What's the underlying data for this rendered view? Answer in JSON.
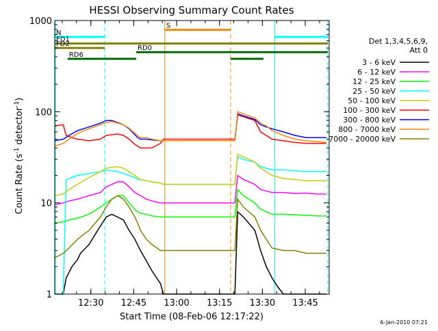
{
  "chart_data": {
    "type": "line",
    "title": "HESSI Observing Summary Count Rates",
    "xlabel": "Start Time (08-Feb-06 12:17:22)",
    "ylabel_text": "Count Rate (s",
    "ylabel_exp1": "-1",
    "ylabel_mid": " detector",
    "ylabel_exp2": "-1",
    "ylabel_end": ")",
    "y_scale": "log",
    "ylim": [
      1,
      1000
    ],
    "xlim_minutes": [
      0,
      96
    ],
    "x_ticks": [
      {
        "label": "12:30",
        "min": 12.63
      },
      {
        "label": "12:45",
        "min": 27.63
      },
      {
        "label": "13:00",
        "min": 42.63
      },
      {
        "label": "13:15",
        "min": 57.63
      },
      {
        "label": "13:30",
        "min": 72.63
      },
      {
        "label": "13:45",
        "min": 87.63
      }
    ],
    "y_ticks": [
      {
        "label": "1",
        "value": 1
      },
      {
        "label": "10",
        "value": 10
      },
      {
        "label": "100",
        "value": 100
      },
      {
        "label": "1000",
        "value": 1000
      }
    ],
    "legend": {
      "title_line1": "Det 1,3,4,5,6,9,",
      "title_line2": "Att 0",
      "position": "right"
    },
    "series": [
      {
        "name": "3 - 6 keV",
        "color": "#000000",
        "x": [
          0,
          3,
          4,
          6,
          8,
          9,
          12,
          15,
          18,
          20,
          24,
          26,
          28,
          30,
          34,
          37,
          38,
          63,
          64,
          66,
          70,
          72,
          74,
          76,
          78,
          80,
          84,
          88,
          92,
          95
        ],
        "y": [
          1,
          1,
          1.5,
          2,
          2.4,
          2.8,
          3.5,
          5,
          7,
          7.5,
          6.5,
          5,
          4,
          3,
          1.8,
          1.3,
          1,
          1,
          8,
          7,
          5,
          3,
          2,
          1.5,
          1.2,
          1,
          1,
          1,
          1,
          1
        ]
      },
      {
        "name": "6 - 12 keV",
        "color": "#ff00ff",
        "x": [
          0,
          3,
          5,
          8,
          12,
          16,
          18,
          22,
          24,
          26,
          28,
          29,
          30,
          32,
          34,
          37,
          38,
          63,
          64,
          66,
          68,
          70,
          72,
          74,
          76,
          80,
          84,
          88,
          92,
          95
        ],
        "y": [
          9.5,
          10,
          10.5,
          11,
          12,
          13,
          15,
          17,
          17,
          15,
          13,
          12.5,
          12,
          11,
          10.5,
          10,
          10,
          10,
          20,
          18,
          17,
          16,
          14,
          13.5,
          13,
          13,
          12.7,
          12.8,
          12.5,
          12.5
        ]
      },
      {
        "name": "12 - 25 keV",
        "color": "#00ff00",
        "x": [
          0,
          3,
          5,
          8,
          12,
          16,
          18,
          22,
          24,
          26,
          28,
          29,
          30,
          32,
          34,
          37,
          38,
          63,
          64,
          66,
          70,
          72,
          74,
          76,
          80,
          84,
          88,
          92,
          95
        ],
        "y": [
          6,
          6.2,
          6.5,
          6.8,
          7.5,
          9,
          10,
          12,
          12,
          10,
          8.5,
          8,
          7.7,
          7.5,
          7.2,
          7,
          7,
          7,
          14,
          12,
          10,
          8.5,
          8,
          7.5,
          7.5,
          7.4,
          7.3,
          7.2,
          7.2
        ]
      },
      {
        "name": "25 - 50 keV",
        "color": "#00ffff",
        "x": [
          0,
          3,
          4,
          6,
          8,
          12,
          16,
          18,
          22,
          24,
          26,
          28,
          29,
          30,
          34,
          37,
          38,
          63,
          64,
          66,
          70,
          72,
          74,
          76,
          80,
          84,
          88,
          92,
          95
        ],
        "y": [
          1,
          1,
          18,
          19,
          20,
          21,
          22,
          23,
          22,
          21,
          20,
          19,
          18,
          18,
          17,
          16.5,
          16,
          16,
          32,
          30,
          28,
          25,
          24,
          23,
          23,
          22.5,
          22,
          22,
          22
        ]
      },
      {
        "name": "50 - 100 keV",
        "color": "#cccc00",
        "x": [
          0,
          3,
          5,
          8,
          12,
          16,
          18,
          22,
          24,
          26,
          28,
          29,
          30,
          34,
          37,
          38,
          63,
          64,
          66,
          70,
          72,
          74,
          76,
          80,
          84,
          88,
          92,
          95
        ],
        "y": [
          12,
          12.5,
          14,
          16,
          19,
          22,
          24,
          25,
          24,
          22,
          20,
          19,
          18,
          17,
          16.5,
          16,
          16,
          34,
          32,
          28,
          24,
          22,
          20,
          18.5,
          18,
          17.5,
          17.5,
          17.5
        ]
      },
      {
        "name": "100 - 300 keV",
        "color": "#ff0000",
        "x": [
          0,
          3,
          4,
          6,
          8,
          12,
          16,
          18,
          22,
          24,
          26,
          28,
          29,
          30,
          32,
          34,
          37,
          38,
          63,
          64,
          66,
          70,
          72,
          74,
          76,
          80,
          84,
          88,
          92,
          95
        ],
        "y": [
          70,
          72,
          55,
          52,
          50,
          48,
          50,
          55,
          57,
          55,
          50,
          44,
          42,
          40,
          40,
          40,
          45,
          50,
          50,
          92,
          88,
          80,
          60,
          55,
          50,
          48,
          46,
          45,
          45,
          45
        ]
      },
      {
        "name": "300 - 800 keV",
        "color": "#0000ff",
        "x": [
          0,
          3,
          5,
          8,
          12,
          16,
          18,
          20,
          22,
          24,
          26,
          28,
          29,
          30,
          32,
          34,
          37,
          38,
          63,
          64,
          66,
          70,
          72,
          74,
          76,
          80,
          84,
          88,
          92,
          95
        ],
        "y": [
          48,
          50,
          55,
          62,
          68,
          75,
          80,
          80,
          76,
          72,
          65,
          56,
          52,
          50,
          50,
          49,
          48,
          48,
          48,
          95,
          90,
          82,
          72,
          68,
          65,
          60,
          55,
          52,
          52,
          52
        ]
      },
      {
        "name": "800 - 7000 keV",
        "color": "#ff8800",
        "x": [
          0,
          3,
          5,
          8,
          12,
          16,
          18,
          20,
          22,
          24,
          26,
          28,
          29,
          30,
          32,
          34,
          37,
          38,
          63,
          64,
          66,
          70,
          72,
          74,
          76,
          80,
          84,
          88,
          92,
          95
        ],
        "y": [
          42,
          45,
          50,
          58,
          65,
          72,
          76,
          78,
          75,
          72,
          66,
          58,
          55,
          52,
          52,
          50,
          48,
          48,
          48,
          100,
          95,
          85,
          75,
          70,
          62,
          55,
          50,
          48,
          47,
          46
        ]
      },
      {
        "name": "7000 - 20000 keV",
        "color": "#808000",
        "x": [
          0,
          3,
          5,
          8,
          12,
          16,
          18,
          20,
          22,
          24,
          26,
          28,
          29,
          30,
          32,
          34,
          37,
          38,
          63,
          64,
          66,
          70,
          72,
          74,
          76,
          80,
          84,
          88,
          92,
          95
        ],
        "y": [
          2.5,
          2.8,
          3.2,
          4,
          5,
          7,
          9,
          11,
          12,
          11,
          9,
          7,
          6,
          5,
          4,
          3.5,
          3,
          3,
          3,
          11,
          9,
          7,
          5,
          4,
          3.2,
          3,
          3,
          2.8,
          2.8,
          2.8
        ]
      }
    ],
    "mode_bars": [
      {
        "label": "N",
        "color": "#00ffff",
        "spans": [
          [
            0,
            17.5
          ],
          [
            77,
            95.5
          ]
        ],
        "value": 660
      },
      {
        "label": "S",
        "color": "#ff8800",
        "spans": [
          [
            38.5,
            61.5
          ]
        ],
        "value": 790
      },
      {
        "label": "FD1",
        "color": "#808000",
        "spans": [
          [
            0,
            95.5
          ]
        ],
        "value": 560
      },
      {
        "label": "FD2",
        "color": "#808000",
        "spans": [
          [
            0,
            17.5
          ]
        ],
        "value": 500
      },
      {
        "label": "RD0",
        "color": "#006600",
        "spans": [
          [
            28.5,
            95.5
          ]
        ],
        "value": 450
      },
      {
        "label": "RD6",
        "color": "#006600",
        "spans": [
          [
            4.5,
            28.5
          ],
          [
            61.5,
            73
          ]
        ],
        "value": 380
      }
    ],
    "vertical_lines": [
      {
        "min": 0.2,
        "color": "#00ffff",
        "dashed": false
      },
      {
        "min": 17.5,
        "color": "#00ffff",
        "dashed": true
      },
      {
        "min": 38.5,
        "color": "#cc8800",
        "dashed": false
      },
      {
        "min": 61.5,
        "color": "#ff8800",
        "dashed": true
      },
      {
        "min": 77,
        "color": "#00ffff",
        "dashed": false
      },
      {
        "min": 95.5,
        "color": "#00ffff",
        "dashed": true
      }
    ],
    "footer_timestamp": "6-Jan-2010 07:21"
  }
}
